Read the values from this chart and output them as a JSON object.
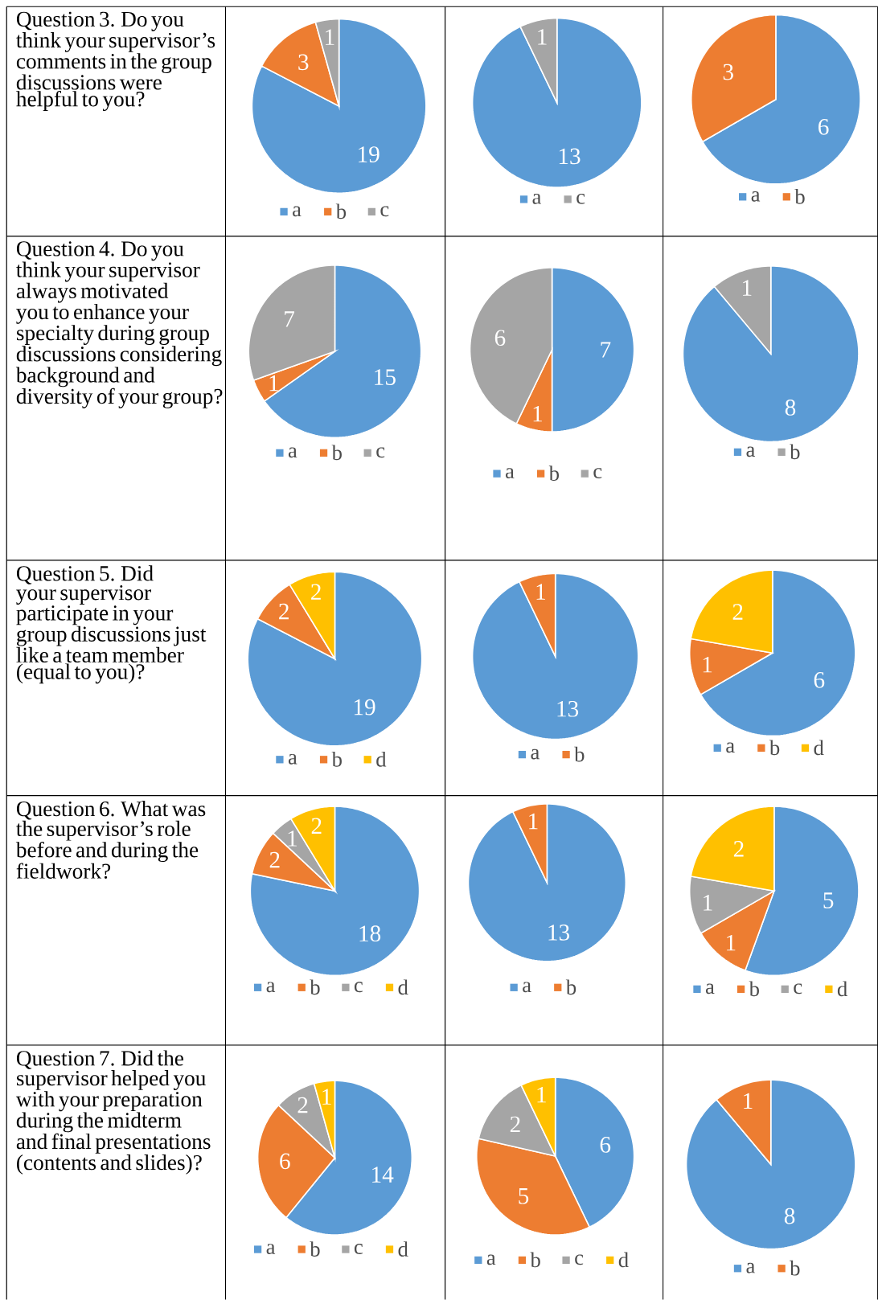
{
  "chart_data": [
    {
      "type": "other",
      "title": "Question 3. Do you think your supervisor’s comments in the group discussions were helpful to you?"
    },
    {
      "type": "pie",
      "categories": [
        "a",
        "b",
        "c"
      ],
      "values": [
        19,
        3,
        1
      ],
      "value_labels": [
        "19",
        "3",
        "1"
      ],
      "colors": [
        "#5b9bd5",
        "#ed7d31",
        "#a5a5a5"
      ],
      "legend": "bottom"
    },
    {
      "type": "pie",
      "categories": [
        "a",
        "c"
      ],
      "values": [
        13,
        1
      ],
      "value_labels": [
        "13",
        "1"
      ],
      "colors": [
        "#5b9bd5",
        "#a5a5a5"
      ],
      "legend": "bottom"
    },
    {
      "type": "pie",
      "categories": [
        "a",
        "b"
      ],
      "values": [
        6,
        3
      ],
      "value_labels": [
        "6",
        "3"
      ],
      "colors": [
        "#5b9bd5",
        "#ed7d31"
      ],
      "legend": "bottom"
    },
    {
      "type": "other",
      "title": "Question 4. Do you think your supervisor always motivated you to enhance your specialty during group discussions considering background and diversity of your group?"
    },
    {
      "type": "pie",
      "categories": [
        "a",
        "b",
        "c"
      ],
      "values": [
        15,
        1,
        7
      ],
      "value_labels": [
        "15",
        "1",
        "7"
      ],
      "colors": [
        "#5b9bd5",
        "#ed7d31",
        "#a5a5a5"
      ],
      "legend": "bottom"
    },
    {
      "type": "pie",
      "categories": [
        "a",
        "b",
        "c"
      ],
      "values": [
        7,
        1,
        6
      ],
      "value_labels": [
        "7",
        "1",
        "6"
      ],
      "colors": [
        "#5b9bd5",
        "#ed7d31",
        "#a5a5a5"
      ],
      "legend": "bottom"
    },
    {
      "type": "pie",
      "categories": [
        "a",
        "b"
      ],
      "values": [
        8,
        1
      ],
      "value_labels": [
        "8",
        "1"
      ],
      "colors": [
        "#5b9bd5",
        "#a5a5a5"
      ],
      "legend": "bottom"
    },
    {
      "type": "other",
      "title": "Question 5. Did your supervisor participate in your group discussions just like a team member (equal to you)?"
    },
    {
      "type": "pie",
      "categories": [
        "a",
        "b",
        "d"
      ],
      "values": [
        19,
        2,
        2
      ],
      "value_labels": [
        "19",
        "2",
        "2"
      ],
      "colors": [
        "#5b9bd5",
        "#ed7d31",
        "#ffc000"
      ],
      "legend": "bottom"
    },
    {
      "type": "pie",
      "categories": [
        "a",
        "b"
      ],
      "values": [
        13,
        1
      ],
      "value_labels": [
        "13",
        "1"
      ],
      "colors": [
        "#5b9bd5",
        "#ed7d31"
      ],
      "legend": "bottom"
    },
    {
      "type": "pie",
      "categories": [
        "a",
        "b",
        "d"
      ],
      "values": [
        6,
        1,
        2
      ],
      "value_labels": [
        "6",
        "1",
        "2"
      ],
      "colors": [
        "#5b9bd5",
        "#ed7d31",
        "#ffc000"
      ],
      "legend": "bottom"
    },
    {
      "type": "other",
      "title": "Question 6. What was the supervisor’s role before and during the fieldwork?"
    },
    {
      "type": "pie",
      "categories": [
        "a",
        "b",
        "c",
        "d"
      ],
      "values": [
        18,
        2,
        1,
        2
      ],
      "value_labels": [
        "18",
        "2",
        "1",
        "2"
      ],
      "colors": [
        "#5b9bd5",
        "#ed7d31",
        "#a5a5a5",
        "#ffc000"
      ],
      "legend": "bottom"
    },
    {
      "type": "pie",
      "categories": [
        "a",
        "b"
      ],
      "values": [
        13,
        1
      ],
      "value_labels": [
        "13",
        "1"
      ],
      "colors": [
        "#5b9bd5",
        "#ed7d31"
      ],
      "legend": "bottom"
    },
    {
      "type": "pie",
      "categories": [
        "a",
        "b",
        "c",
        "d"
      ],
      "values": [
        5,
        1,
        1,
        2
      ],
      "value_labels": [
        "5",
        "1",
        "1",
        "2"
      ],
      "colors": [
        "#5b9bd5",
        "#ed7d31",
        "#a5a5a5",
        "#ffc000"
      ],
      "legend": "bottom"
    },
    {
      "type": "other",
      "title": "Question 7. Did the supervisor helped you with your preparation during the midterm and final presentations (contents and slides)?"
    },
    {
      "type": "pie",
      "categories": [
        "a",
        "b",
        "c",
        "d"
      ],
      "values": [
        14,
        6,
        2,
        1
      ],
      "value_labels": [
        "14",
        "6",
        "2",
        "1"
      ],
      "colors": [
        "#5b9bd5",
        "#ed7d31",
        "#a5a5a5",
        "#ffc000"
      ],
      "legend": "bottom"
    },
    {
      "type": "pie",
      "categories": [
        "a",
        "b",
        "c",
        "d"
      ],
      "values": [
        6,
        5,
        2,
        1
      ],
      "value_labels": [
        "6",
        "5",
        "2",
        "1"
      ],
      "colors": [
        "#5b9bd5",
        "#ed7d31",
        "#a5a5a5",
        "#ffc000"
      ],
      "legend": "bottom"
    },
    {
      "type": "pie",
      "categories": [
        "a",
        "b"
      ],
      "values": [
        8,
        1
      ],
      "value_labels": [
        "8",
        "1"
      ],
      "colors": [
        "#5b9bd5",
        "#ed7d31"
      ],
      "legend": "bottom"
    }
  ]
}
